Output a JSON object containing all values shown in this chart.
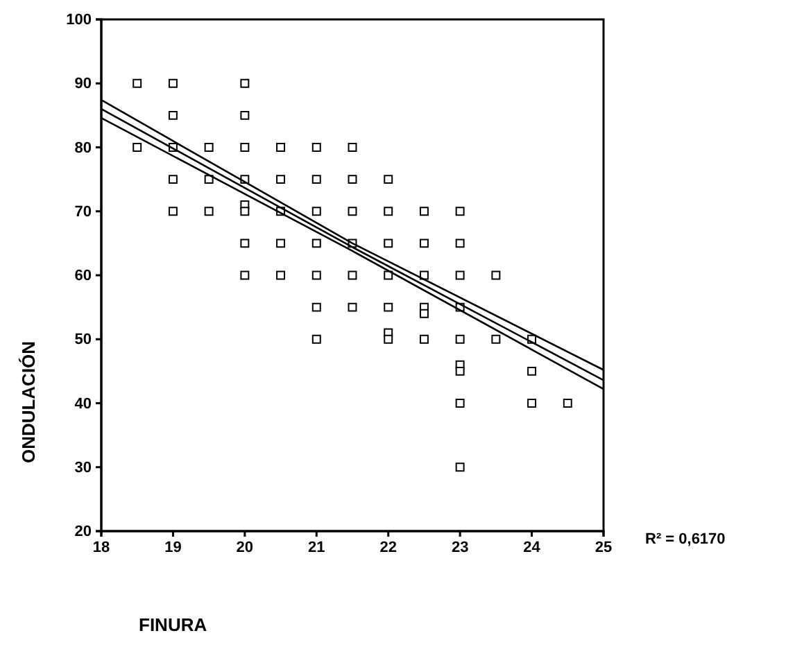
{
  "chart_data": {
    "type": "scatter",
    "xlabel": "FINURA",
    "ylabel": "ONDULACIÓN",
    "annotations": [
      "R² = 0,6170"
    ],
    "xlim": [
      18,
      25
    ],
    "xticks": [
      18,
      19,
      20,
      21,
      22,
      23,
      24,
      25
    ],
    "ylim": [
      20,
      100
    ],
    "yticks": [
      20,
      30,
      40,
      50,
      60,
      70,
      80,
      90,
      100
    ],
    "grid": false,
    "series": [
      {
        "color": "#000000",
        "marker": "square",
        "x": [
          18.5,
          18.5,
          19,
          19,
          19,
          19,
          19,
          19.5,
          19.5,
          19.5,
          20,
          20,
          20,
          20,
          20,
          20,
          20,
          20,
          20.5,
          20.5,
          20.5,
          20.5,
          20.5,
          21,
          21,
          21,
          21,
          21,
          21,
          21,
          21.5,
          21.5,
          21.5,
          21.5,
          21.5,
          21.5,
          22,
          22,
          22,
          22,
          22,
          22,
          22,
          22.5,
          22.5,
          22.5,
          22.5,
          22.5,
          22.5,
          23,
          23,
          23,
          23,
          23,
          23,
          23,
          23,
          23,
          23.5,
          23.5,
          24,
          24,
          24,
          24.5
        ],
        "values": [
          90,
          80,
          90,
          85,
          80,
          75,
          70,
          80,
          75,
          70,
          90,
          85,
          80,
          75,
          71,
          70,
          65,
          60,
          80,
          75,
          70,
          65,
          60,
          80,
          75,
          70,
          65,
          60,
          55,
          50,
          80,
          75,
          70,
          65,
          60,
          55,
          75,
          70,
          65,
          60,
          55,
          51,
          50,
          70,
          65,
          60,
          55,
          54,
          50,
          70,
          65,
          60,
          55,
          50,
          46,
          45,
          40,
          30,
          60,
          50,
          50,
          45,
          40,
          40
        ]
      },
      {
        "type": "line",
        "color": "#000000",
        "marker": "none",
        "x": [
          18,
          21.5,
          25
        ],
        "values": [
          86,
          64.4,
          43.6
        ]
      },
      {
        "type": "line",
        "color": "#000000",
        "marker": "none",
        "x": [
          18,
          21.5,
          25
        ],
        "values": [
          84.6,
          63.8,
          42.2
        ]
      },
      {
        "type": "line",
        "color": "#000000",
        "marker": "none",
        "x": [
          18,
          21.5,
          25
        ],
        "values": [
          87.4,
          65,
          45.2
        ]
      }
    ]
  }
}
